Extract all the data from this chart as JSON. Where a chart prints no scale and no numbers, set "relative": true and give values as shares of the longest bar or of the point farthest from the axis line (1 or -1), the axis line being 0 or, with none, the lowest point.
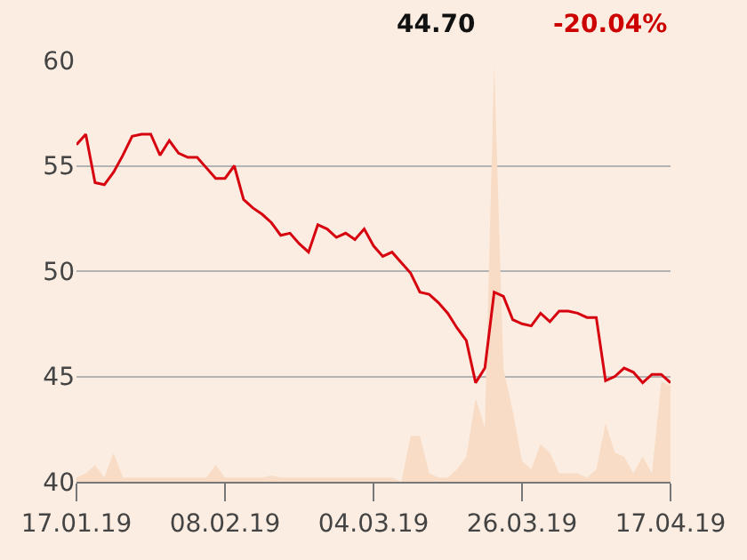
{
  "chart_data": [
    {
      "type": "line",
      "annotations": [
        "44.70",
        "-20.04%"
      ],
      "categories": [
        "17.01.19",
        null,
        null,
        null,
        null,
        null,
        null,
        null,
        null,
        null,
        null,
        null,
        null,
        null,
        null,
        null,
        "08.02.19",
        null,
        null,
        null,
        null,
        null,
        null,
        null,
        null,
        null,
        null,
        null,
        null,
        null,
        null,
        null,
        "04.03.19",
        null,
        null,
        null,
        null,
        null,
        null,
        null,
        null,
        null,
        null,
        null,
        null,
        null,
        null,
        null,
        "26.03.19",
        null,
        null,
        null,
        null,
        null,
        null,
        null,
        null,
        null,
        null,
        null,
        null,
        null,
        null,
        null,
        "17.04.19"
      ],
      "series": [
        {
          "color": "#d7000f",
          "values": [
            56.0,
            56.5,
            54.2,
            54.1,
            54.7,
            55.5,
            56.4,
            56.5,
            56.5,
            55.5,
            56.2,
            55.6,
            55.4,
            55.4,
            54.9,
            54.4,
            54.4,
            55.0,
            53.4,
            53.0,
            52.7,
            52.3,
            51.7,
            51.8,
            51.3,
            50.9,
            52.2,
            52.0,
            51.6,
            51.8,
            51.5,
            52.0,
            51.2,
            50.7,
            50.9,
            50.4,
            49.9,
            49.0,
            48.9,
            48.5,
            48.0,
            47.3,
            46.7,
            44.7,
            45.4,
            49.0,
            48.8,
            47.7,
            47.5,
            47.4,
            48.0,
            47.6,
            48.1,
            48.1,
            48.0,
            47.8,
            47.8,
            44.8,
            45.0,
            45.4,
            45.2,
            44.7,
            45.1,
            45.1,
            44.7
          ]
        }
      ],
      "ylim": [
        40,
        60
      ],
      "yticks": [
        40,
        45,
        50,
        55,
        60
      ],
      "grid": "y",
      "marker": "none",
      "line_style": "solid"
    },
    {
      "type": "area",
      "relative": true,
      "categories": [
        null,
        null,
        null,
        null,
        null,
        null,
        null,
        null,
        null,
        null,
        null,
        null,
        null,
        null,
        null,
        null,
        null,
        null,
        null,
        null,
        null,
        null,
        null,
        null,
        null,
        null,
        null,
        null,
        null,
        null,
        null,
        null,
        null,
        null,
        null,
        null,
        null,
        null,
        null,
        null,
        null,
        null,
        null,
        null,
        null,
        null,
        null,
        null,
        null,
        null,
        null,
        null,
        null,
        null,
        null,
        null,
        null,
        null,
        null,
        null,
        null,
        null,
        null,
        null,
        null
      ],
      "series": [
        {
          "color": "#f8dcc6",
          "values": [
            0.01,
            0.02,
            0.04,
            0.01,
            0.07,
            0.01,
            0.01,
            0.01,
            0.01,
            0.01,
            0.01,
            0.01,
            0.01,
            0.01,
            0.01,
            0.04,
            0.01,
            0.01,
            0.01,
            0.01,
            0.01,
            0.015,
            0.01,
            0.01,
            0.01,
            0.01,
            0.01,
            0.01,
            0.01,
            0.01,
            0.01,
            0.01,
            0.01,
            0.01,
            0.01,
            0,
            0.11,
            0.11,
            0.02,
            0.01,
            0.01,
            0.03,
            0.06,
            0.2,
            0.13,
            1,
            0.27,
            0.17,
            0.05,
            0.03,
            0.09,
            0.07,
            0.02,
            0.02,
            0.02,
            0.01,
            0.03,
            0.14,
            0.07,
            0.06,
            0.02,
            0.06,
            0.02,
            0.24,
            0.23
          ]
        }
      ]
    }
  ]
}
